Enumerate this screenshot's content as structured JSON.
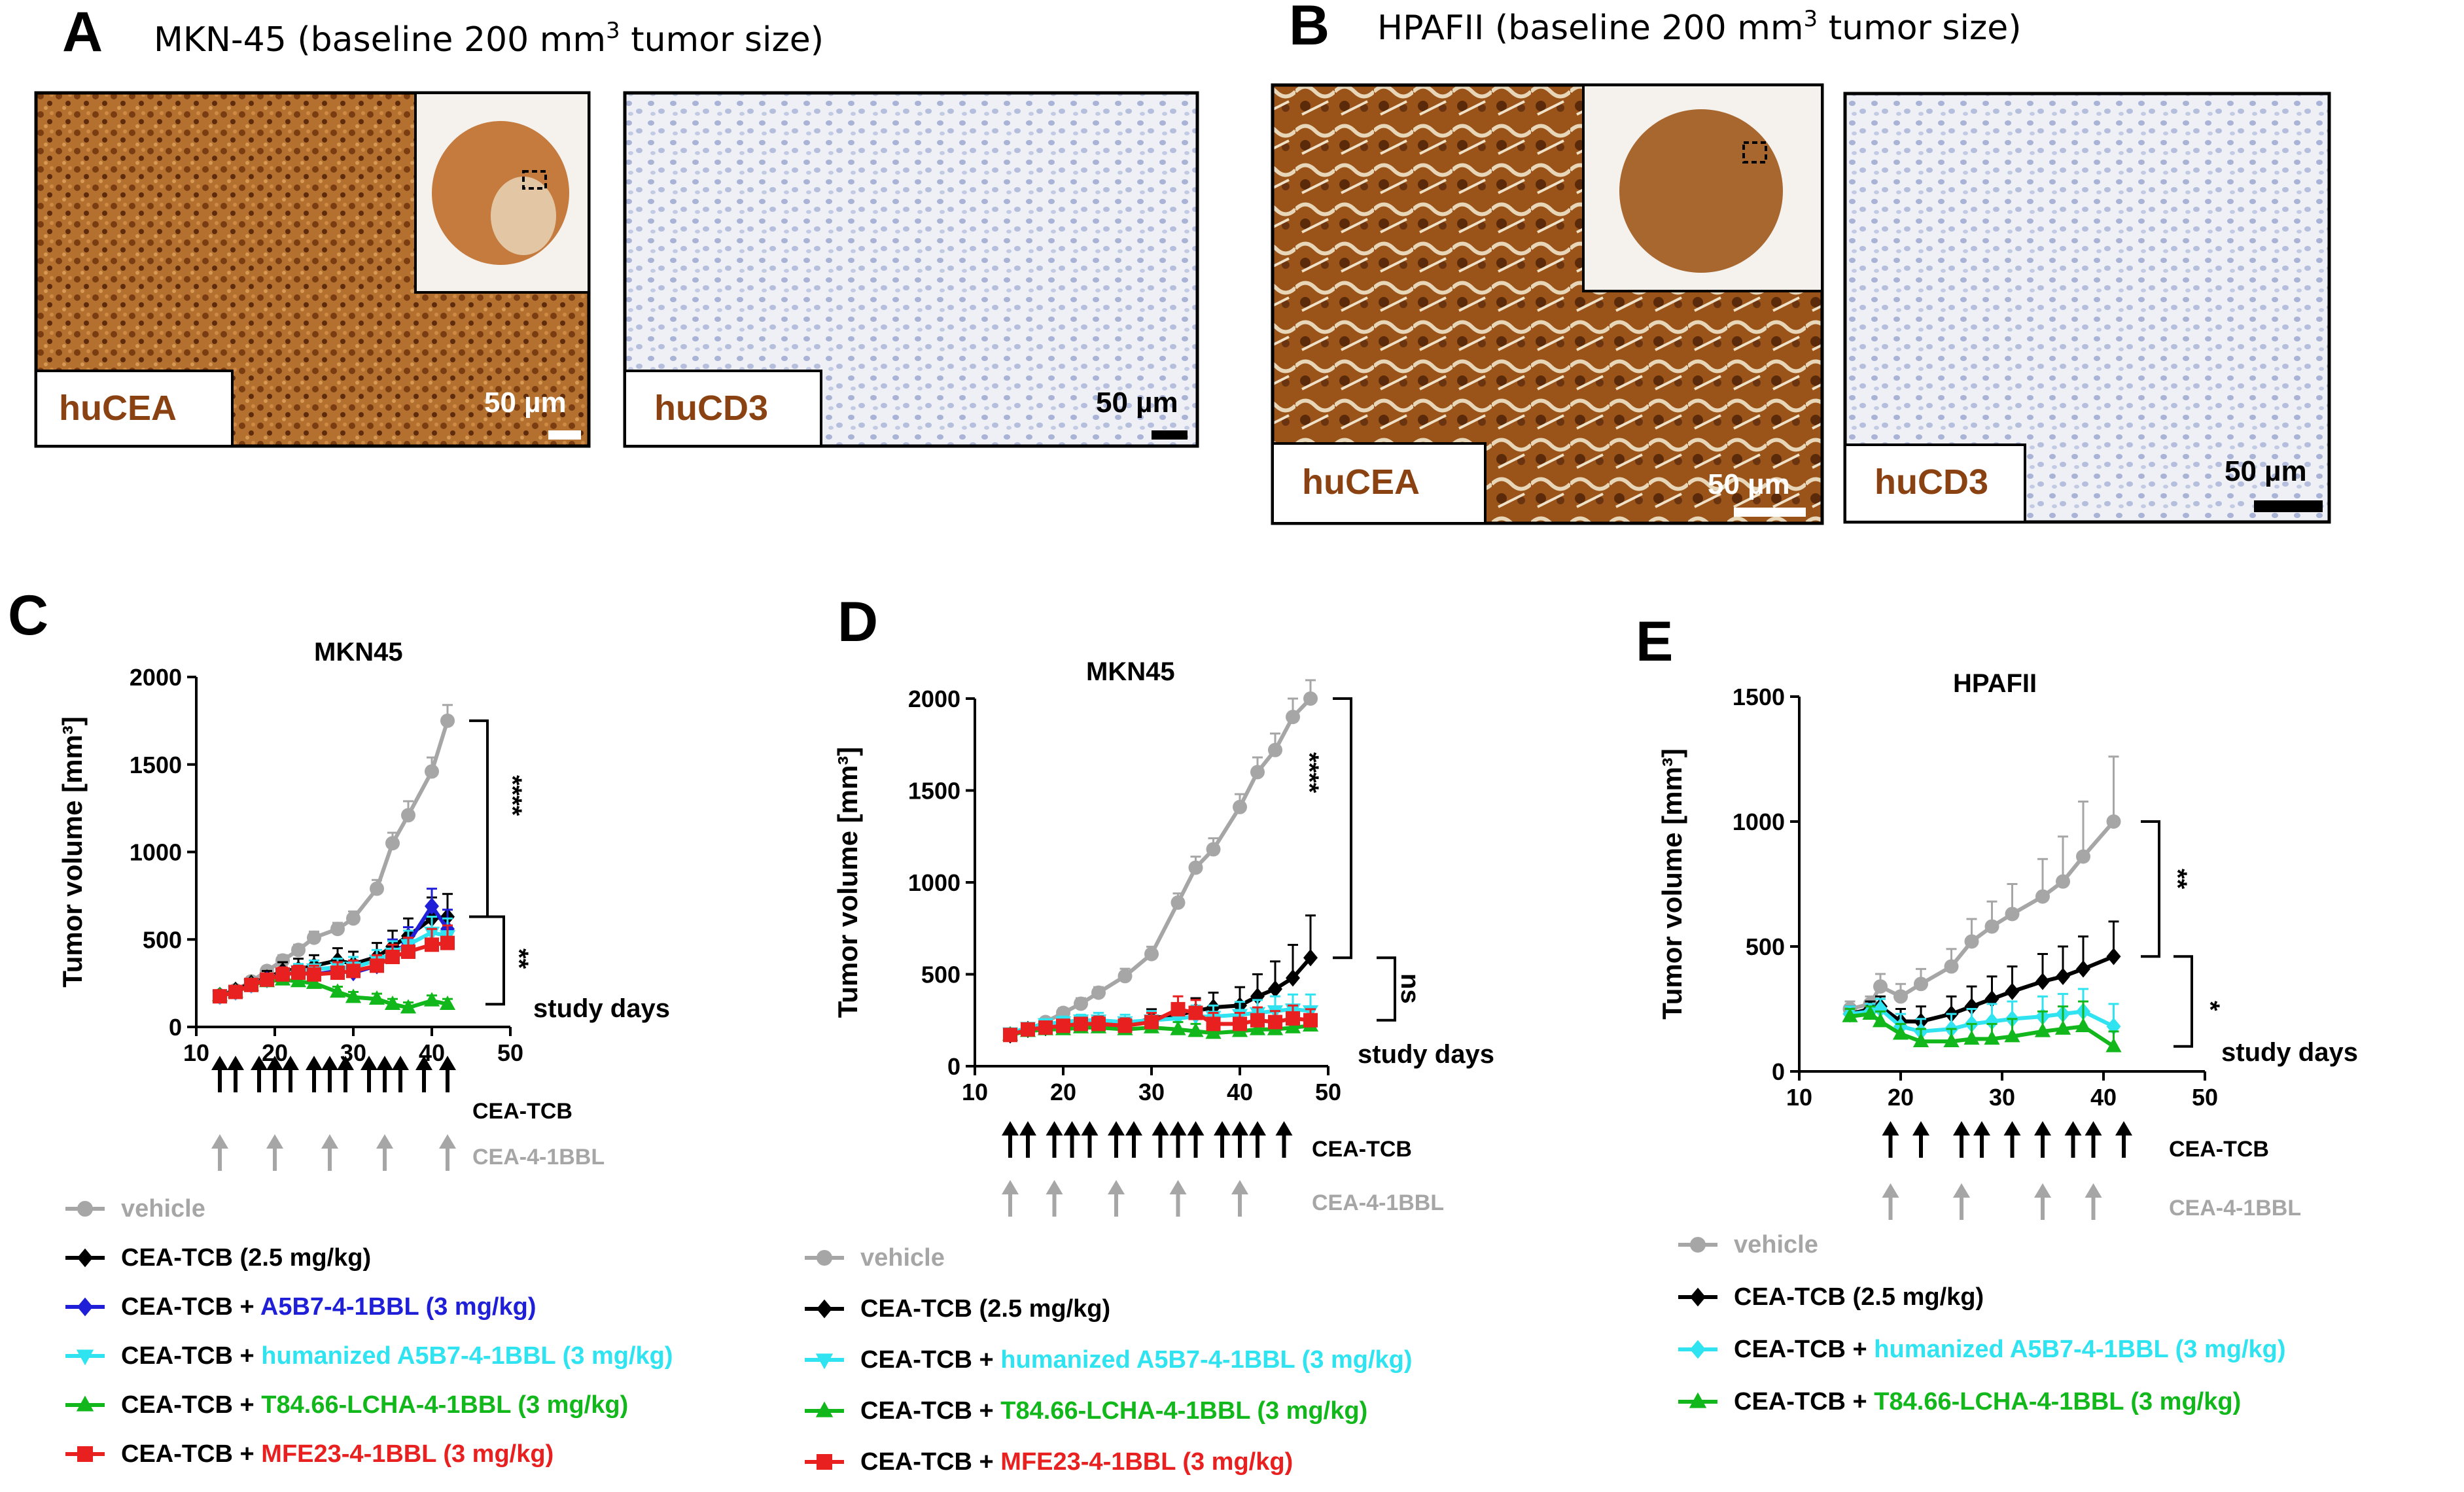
{
  "colors": {
    "vehicle": "#a6a6a6",
    "cea_tcb": "#000000",
    "a5b7": "#1f1fd8",
    "humanized_a5b7": "#2fe3f0",
    "t84": "#12b81b",
    "mfe23": "#e82020",
    "cea_stain": "#8a4a1a",
    "hucea_text": "#8a4212"
  },
  "panel_a": {
    "letter": "A",
    "title": "MKN-45 (baseline 200 mm",
    "title_sup": "3",
    "title_end": " tumor size)",
    "stain1": "huCEA",
    "stain2": "huCD3",
    "scale1": "50 µm",
    "scale2": "50 µm"
  },
  "panel_b": {
    "letter": "B",
    "title": "HPAFII (baseline 200 mm",
    "title_sup": "3",
    "title_end": " tumor size)",
    "stain1": "huCEA",
    "stain2": "huCD3",
    "scale1": "50 µm",
    "scale2": "50 µm"
  },
  "panel_c": {
    "letter": "C",
    "sig_top": "****",
    "sig_bottom": "**",
    "arrow_label_1": "CEA-TCB",
    "arrow_label_2": "CEA-4-1BBL",
    "legend": [
      {
        "prefix": "vehicle",
        "suffix": "",
        "color_key": "vehicle",
        "marker": "circle"
      },
      {
        "prefix": "CEA-TCB (2.5 mg/kg)",
        "suffix": "",
        "color_key": "cea_tcb",
        "marker": "diamond"
      },
      {
        "prefix": "CEA-TCB + ",
        "suffix": "A5B7-4-1BBL (3 mg/kg)",
        "color_key": "a5b7",
        "marker": "diamond"
      },
      {
        "prefix": "CEA-TCB + ",
        "suffix": "humanized A5B7-4-1BBL (3 mg/kg)",
        "color_key": "humanized_a5b7",
        "marker": "triangle-down"
      },
      {
        "prefix": "CEA-TCB + ",
        "suffix": "T84.66-LCHA-4-1BBL (3 mg/kg)",
        "color_key": "t84",
        "marker": "triangle-up"
      },
      {
        "prefix": "CEA-TCB + ",
        "suffix": "MFE23-4-1BBL (3 mg/kg)",
        "color_key": "mfe23",
        "marker": "square"
      }
    ]
  },
  "panel_d": {
    "letter": "D",
    "sig_top": "****",
    "sig_bottom": "ns",
    "arrow_label_1": "CEA-TCB",
    "arrow_label_2": "CEA-4-1BBL",
    "legend": [
      {
        "prefix": "vehicle",
        "suffix": "",
        "color_key": "vehicle",
        "marker": "circle"
      },
      {
        "prefix": "CEA-TCB (2.5 mg/kg)",
        "suffix": "",
        "color_key": "cea_tcb",
        "marker": "diamond"
      },
      {
        "prefix": "CEA-TCB + ",
        "suffix": "humanized A5B7-4-1BBL (3 mg/kg)",
        "color_key": "humanized_a5b7",
        "marker": "triangle-down"
      },
      {
        "prefix": "CEA-TCB + ",
        "suffix": "T84.66-LCHA-4-1BBL (3 mg/kg)",
        "color_key": "t84",
        "marker": "triangle-up"
      },
      {
        "prefix": "CEA-TCB + ",
        "suffix": "MFE23-4-1BBL (3 mg/kg)",
        "color_key": "mfe23",
        "marker": "square"
      }
    ]
  },
  "panel_e": {
    "letter": "E",
    "sig_top": "**",
    "sig_bottom": "*",
    "arrow_label_1": "CEA-TCB",
    "arrow_label_2": "CEA-4-1BBL",
    "legend": [
      {
        "prefix": "vehicle",
        "suffix": "",
        "color_key": "vehicle",
        "marker": "circle"
      },
      {
        "prefix": "CEA-TCB (2.5 mg/kg)",
        "suffix": "",
        "color_key": "cea_tcb",
        "marker": "diamond"
      },
      {
        "prefix": "CEA-TCB + ",
        "suffix": "humanized A5B7-4-1BBL (3 mg/kg)",
        "color_key": "humanized_a5b7",
        "marker": "diamond"
      },
      {
        "prefix": "CEA-TCB + ",
        "suffix": "T84.66-LCHA-4-1BBL (3 mg/kg)",
        "color_key": "t84",
        "marker": "triangle-up"
      }
    ]
  },
  "chart_data": [
    {
      "panel": "C",
      "type": "line",
      "title": "MKN45",
      "xlabel": "study days",
      "ylabel": "Tumor volume [mm³]",
      "xlim": [
        10,
        50
      ],
      "ylim": [
        0,
        2000
      ],
      "xticks": [
        10,
        20,
        30,
        40,
        50
      ],
      "yticks": [
        0,
        500,
        1000,
        1500,
        2000
      ],
      "dosing_days_cea_tcb": [
        13,
        15,
        18,
        20,
        22,
        25,
        27,
        29,
        32,
        34,
        36,
        39,
        42
      ],
      "dosing_days_cea_4_1bbl": [
        13,
        20,
        27,
        34,
        42
      ],
      "series": [
        {
          "name": "vehicle",
          "color_key": "vehicle",
          "marker": "circle",
          "x": [
            13,
            15,
            17,
            19,
            21,
            23,
            25,
            28,
            30,
            33,
            35,
            37,
            40,
            42
          ],
          "y": [
            180,
            210,
            260,
            320,
            380,
            440,
            510,
            560,
            620,
            790,
            1050,
            1210,
            1460,
            1750
          ],
          "err": [
            20,
            20,
            25,
            25,
            30,
            30,
            35,
            35,
            40,
            50,
            60,
            80,
            80,
            90
          ]
        },
        {
          "name": "CEA-TCB (2.5 mg/kg)",
          "color_key": "cea_tcb",
          "marker": "diamond",
          "x": [
            13,
            15,
            17,
            19,
            21,
            23,
            25,
            28,
            30,
            33,
            35,
            37,
            40,
            42
          ],
          "y": [
            180,
            210,
            250,
            280,
            320,
            330,
            350,
            380,
            360,
            400,
            460,
            520,
            620,
            630
          ],
          "err": [
            20,
            20,
            25,
            40,
            50,
            60,
            60,
            70,
            70,
            80,
            90,
            100,
            120,
            130
          ]
        },
        {
          "name": "CEA-TCB + A5B7-4-1BBL (3 mg/kg)",
          "color_key": "a5b7",
          "marker": "diamond",
          "x": [
            13,
            15,
            17,
            19,
            21,
            23,
            25,
            28,
            30,
            33,
            35,
            37,
            40,
            42
          ],
          "y": [
            175,
            200,
            240,
            270,
            300,
            310,
            300,
            320,
            310,
            350,
            420,
            480,
            690,
            560
          ],
          "err": [
            20,
            20,
            25,
            30,
            40,
            40,
            50,
            50,
            60,
            60,
            80,
            90,
            100,
            110
          ]
        },
        {
          "name": "CEA-TCB + humanized A5B7-4-1BBL (3 mg/kg)",
          "color_key": "humanized_a5b7",
          "marker": "triangle-down",
          "x": [
            13,
            15,
            17,
            19,
            21,
            23,
            25,
            28,
            30,
            33,
            35,
            37,
            40,
            42
          ],
          "y": [
            175,
            200,
            240,
            270,
            300,
            320,
            330,
            340,
            340,
            380,
            420,
            470,
            540,
            520
          ],
          "err": [
            20,
            20,
            25,
            30,
            40,
            40,
            50,
            50,
            60,
            60,
            70,
            80,
            90,
            100
          ]
        },
        {
          "name": "CEA-TCB + T84.66-LCHA-4-1BBL (3 mg/kg)",
          "color_key": "t84",
          "marker": "triangle-up",
          "x": [
            13,
            15,
            17,
            19,
            21,
            23,
            25,
            28,
            30,
            33,
            35,
            37,
            40,
            42
          ],
          "y": [
            180,
            200,
            240,
            260,
            270,
            260,
            250,
            200,
            170,
            160,
            130,
            110,
            150,
            130
          ],
          "err": [
            20,
            20,
            20,
            25,
            30,
            30,
            30,
            30,
            30,
            30,
            30,
            30,
            30,
            30
          ]
        },
        {
          "name": "CEA-TCB + MFE23-4-1BBL (3 mg/kg)",
          "color_key": "mfe23",
          "marker": "square",
          "x": [
            13,
            15,
            17,
            19,
            21,
            23,
            25,
            28,
            30,
            33,
            35,
            37,
            40,
            42
          ],
          "y": [
            175,
            200,
            240,
            270,
            300,
            310,
            300,
            310,
            320,
            350,
            400,
            430,
            470,
            480
          ],
          "err": [
            20,
            20,
            25,
            30,
            40,
            40,
            50,
            60,
            60,
            60,
            70,
            80,
            90,
            100
          ]
        }
      ]
    },
    {
      "panel": "D",
      "type": "line",
      "title": "MKN45",
      "xlabel": "study days",
      "ylabel": "Tumor volume [mm³]",
      "xlim": [
        10,
        50
      ],
      "ylim": [
        0,
        2000
      ],
      "xticks": [
        10,
        20,
        30,
        40,
        50
      ],
      "yticks": [
        0,
        500,
        1000,
        1500,
        2000
      ],
      "dosing_days_cea_tcb": [
        14,
        16,
        19,
        21,
        23,
        26,
        28,
        31,
        33,
        35,
        38,
        40,
        42,
        45
      ],
      "dosing_days_cea_4_1bbl": [
        14,
        19,
        26,
        33,
        40
      ],
      "series": [
        {
          "name": "vehicle",
          "color_key": "vehicle",
          "marker": "circle",
          "x": [
            14,
            16,
            18,
            20,
            22,
            24,
            27,
            30,
            33,
            35,
            37,
            40,
            42,
            44,
            46,
            48
          ],
          "y": [
            170,
            200,
            240,
            290,
            340,
            400,
            490,
            610,
            890,
            1080,
            1180,
            1410,
            1600,
            1720,
            1900,
            2000
          ],
          "err": [
            20,
            20,
            20,
            25,
            30,
            30,
            40,
            40,
            50,
            60,
            60,
            70,
            80,
            90,
            100,
            100
          ]
        },
        {
          "name": "CEA-TCB (2.5 mg/kg)",
          "color_key": "cea_tcb",
          "marker": "diamond",
          "x": [
            14,
            16,
            18,
            20,
            22,
            24,
            27,
            30,
            33,
            35,
            37,
            40,
            42,
            44,
            46,
            48
          ],
          "y": [
            170,
            200,
            210,
            220,
            230,
            230,
            220,
            260,
            280,
            300,
            320,
            330,
            380,
            420,
            480,
            590
          ],
          "err": [
            20,
            20,
            30,
            30,
            40,
            40,
            40,
            50,
            60,
            70,
            80,
            100,
            120,
            150,
            180,
            230
          ]
        },
        {
          "name": "CEA-TCB + humanized A5B7-4-1BBL (3 mg/kg)",
          "color_key": "humanized_a5b7",
          "marker": "triangle-down",
          "x": [
            14,
            16,
            18,
            20,
            22,
            24,
            27,
            30,
            33,
            35,
            37,
            40,
            42,
            44,
            46,
            48
          ],
          "y": [
            180,
            210,
            230,
            240,
            250,
            250,
            240,
            250,
            260,
            270,
            270,
            280,
            290,
            300,
            310,
            300
          ],
          "err": [
            20,
            20,
            25,
            30,
            30,
            40,
            40,
            50,
            50,
            60,
            60,
            70,
            70,
            80,
            80,
            90
          ]
        },
        {
          "name": "CEA-TCB + T84.66-LCHA-4-1BBL (3 mg/kg)",
          "color_key": "t84",
          "marker": "triangle-up",
          "x": [
            14,
            16,
            18,
            20,
            22,
            24,
            27,
            30,
            33,
            35,
            37,
            40,
            42,
            44,
            46,
            48
          ],
          "y": [
            170,
            190,
            200,
            200,
            210,
            210,
            200,
            210,
            200,
            190,
            180,
            190,
            200,
            200,
            210,
            220
          ],
          "err": [
            20,
            20,
            20,
            25,
            25,
            30,
            30,
            30,
            40,
            40,
            40,
            50,
            50,
            50,
            60,
            60
          ]
        },
        {
          "name": "CEA-TCB + MFE23-4-1BBL (3 mg/kg)",
          "color_key": "mfe23",
          "marker": "square",
          "x": [
            14,
            16,
            18,
            20,
            22,
            24,
            27,
            30,
            33,
            35,
            37,
            40,
            42,
            44,
            46,
            48
          ],
          "y": [
            170,
            200,
            210,
            220,
            230,
            230,
            220,
            240,
            310,
            290,
            230,
            230,
            250,
            240,
            260,
            250
          ],
          "err": [
            20,
            20,
            25,
            30,
            30,
            40,
            40,
            50,
            70,
            70,
            60,
            60,
            70,
            60,
            70,
            60
          ]
        }
      ]
    },
    {
      "panel": "E",
      "type": "line",
      "title": "HPAFII",
      "xlabel": "study days",
      "ylabel": "Tumor volume [mm³]",
      "xlim": [
        10,
        50
      ],
      "ylim": [
        0,
        1500
      ],
      "xticks": [
        10,
        20,
        30,
        40,
        50
      ],
      "yticks": [
        0,
        500,
        1000,
        1500
      ],
      "dosing_days_cea_tcb": [
        19,
        22,
        26,
        28,
        31,
        34,
        37,
        39,
        42
      ],
      "dosing_days_cea_4_1bbl": [
        19,
        26,
        34,
        39
      ],
      "series": [
        {
          "name": "vehicle",
          "color_key": "vehicle",
          "marker": "circle",
          "x": [
            15,
            17,
            18,
            20,
            22,
            25,
            27,
            29,
            31,
            34,
            36,
            38,
            41
          ],
          "y": [
            250,
            270,
            340,
            300,
            350,
            420,
            520,
            580,
            630,
            700,
            760,
            860,
            1000
          ],
          "err": [
            30,
            30,
            50,
            50,
            60,
            70,
            90,
            100,
            120,
            150,
            180,
            220,
            260
          ]
        },
        {
          "name": "CEA-TCB (2.5 mg/kg)",
          "color_key": "cea_tcb",
          "marker": "diamond",
          "x": [
            15,
            17,
            18,
            20,
            22,
            25,
            27,
            29,
            31,
            34,
            36,
            38,
            41
          ],
          "y": [
            230,
            250,
            260,
            200,
            200,
            230,
            260,
            290,
            320,
            360,
            380,
            410,
            460
          ],
          "err": [
            30,
            30,
            40,
            50,
            60,
            70,
            80,
            90,
            100,
            110,
            120,
            130,
            140
          ]
        },
        {
          "name": "CEA-TCB + humanized A5B7-4-1BBL (3 mg/kg)",
          "color_key": "humanized_a5b7",
          "marker": "diamond",
          "x": [
            15,
            17,
            18,
            20,
            22,
            25,
            27,
            29,
            31,
            34,
            36,
            38,
            41
          ],
          "y": [
            230,
            240,
            250,
            180,
            160,
            170,
            190,
            200,
            210,
            220,
            230,
            240,
            180
          ],
          "err": [
            30,
            30,
            40,
            50,
            50,
            60,
            60,
            70,
            70,
            80,
            80,
            90,
            90
          ]
        },
        {
          "name": "CEA-TCB + T84.66-LCHA-4-1BBL (3 mg/kg)",
          "color_key": "t84",
          "marker": "triangle-up",
          "x": [
            15,
            17,
            18,
            20,
            22,
            25,
            27,
            29,
            31,
            34,
            36,
            38,
            41
          ],
          "y": [
            220,
            230,
            200,
            150,
            120,
            120,
            130,
            130,
            140,
            160,
            170,
            180,
            100
          ],
          "err": [
            30,
            30,
            40,
            40,
            50,
            50,
            60,
            60,
            70,
            80,
            90,
            100,
            60
          ]
        }
      ]
    }
  ]
}
